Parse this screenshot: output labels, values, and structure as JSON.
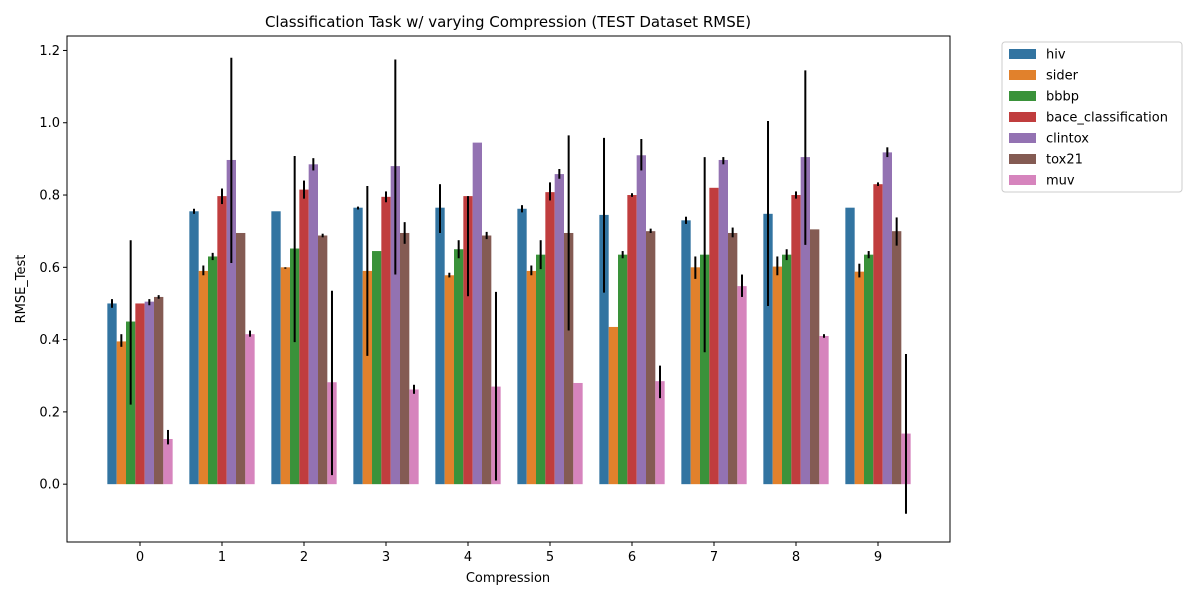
{
  "chart_data": {
    "type": "bar",
    "title": "Classification Task w/ varying Compression (TEST Dataset RMSE)",
    "xlabel": "Compression",
    "ylabel": "RMSE_Test",
    "ylim": [
      -0.16,
      1.24
    ],
    "yticks": [
      "0.0",
      "0.2",
      "0.4",
      "0.6",
      "0.8",
      "1.0",
      "1.2"
    ],
    "categories": [
      "0",
      "1",
      "2",
      "3",
      "4",
      "5",
      "6",
      "7",
      "8",
      "9"
    ],
    "legend_position": "outside-top-right",
    "grid": false,
    "series": [
      {
        "name": "hiv",
        "color": "#3274a1",
        "values": [
          0.5,
          0.755,
          0.755,
          0.765,
          0.765,
          0.762,
          0.745,
          0.73,
          0.748,
          0.765
        ],
        "err_low": [
          0.488,
          0.748,
          0.755,
          0.76,
          0.695,
          0.752,
          0.53,
          0.72,
          0.493,
          0.765
        ],
        "err_high": [
          0.512,
          0.762,
          0.755,
          0.768,
          0.83,
          0.772,
          0.958,
          0.74,
          1.005,
          0.765
        ]
      },
      {
        "name": "sider",
        "color": "#e1812c",
        "values": [
          0.395,
          0.59,
          0.6,
          0.59,
          0.578,
          0.59,
          0.435,
          0.6,
          0.602,
          0.588
        ],
        "err_low": [
          0.38,
          0.578,
          0.596,
          0.355,
          0.572,
          0.578,
          0.435,
          0.568,
          0.578,
          0.572
        ],
        "err_high": [
          0.415,
          0.605,
          0.6,
          0.825,
          0.585,
          0.605,
          0.435,
          0.63,
          0.63,
          0.61
        ]
      },
      {
        "name": "bbbp",
        "color": "#3a923a",
        "values": [
          0.45,
          0.63,
          0.652,
          0.645,
          0.65,
          0.635,
          0.635,
          0.635,
          0.635,
          0.635
        ],
        "err_low": [
          0.22,
          0.62,
          0.393,
          0.645,
          0.625,
          0.595,
          0.625,
          0.365,
          0.62,
          0.625
        ],
        "err_high": [
          0.675,
          0.64,
          0.908,
          0.645,
          0.675,
          0.675,
          0.645,
          0.905,
          0.65,
          0.645
        ]
      },
      {
        "name": "bace_classification",
        "color": "#c03d3e",
        "values": [
          0.5,
          0.797,
          0.815,
          0.795,
          0.797,
          0.808,
          0.8,
          0.82,
          0.8,
          0.83
        ],
        "err_low": [
          0.5,
          0.775,
          0.79,
          0.78,
          0.52,
          0.785,
          0.795,
          0.82,
          0.79,
          0.825
        ],
        "err_high": [
          0.5,
          0.818,
          0.84,
          0.81,
          0.797,
          0.835,
          0.805,
          0.82,
          0.81,
          0.835
        ]
      },
      {
        "name": "clintox",
        "color": "#9372b2",
        "values": [
          0.505,
          0.897,
          0.885,
          0.88,
          0.945,
          0.858,
          0.91,
          0.897,
          0.905,
          0.918
        ],
        "err_low": [
          0.495,
          0.612,
          0.868,
          0.58,
          0.945,
          0.845,
          0.868,
          0.885,
          0.662,
          0.905
        ],
        "err_high": [
          0.512,
          1.18,
          0.902,
          1.175,
          0.945,
          0.872,
          0.955,
          0.905,
          1.145,
          0.932
        ]
      },
      {
        "name": "tox21",
        "color": "#845b53",
        "values": [
          0.518,
          0.695,
          0.688,
          0.695,
          0.688,
          0.695,
          0.7,
          0.695,
          0.705,
          0.7
        ],
        "err_low": [
          0.513,
          0.695,
          0.683,
          0.665,
          0.678,
          0.425,
          0.695,
          0.683,
          0.705,
          0.66
        ],
        "err_high": [
          0.523,
          0.695,
          0.693,
          0.725,
          0.698,
          0.965,
          0.707,
          0.71,
          0.705,
          0.738
        ]
      },
      {
        "name": "muv",
        "color": "#d684bd",
        "values": [
          0.125,
          0.415,
          0.282,
          0.262,
          0.27,
          0.28,
          0.285,
          0.548,
          0.41,
          0.14
        ],
        "err_low": [
          0.11,
          0.408,
          0.025,
          0.25,
          0.01,
          0.28,
          0.238,
          0.518,
          0.405,
          -0.082
        ],
        "err_high": [
          0.15,
          0.425,
          0.535,
          0.275,
          0.532,
          0.28,
          0.328,
          0.58,
          0.415,
          0.36
        ]
      }
    ]
  }
}
